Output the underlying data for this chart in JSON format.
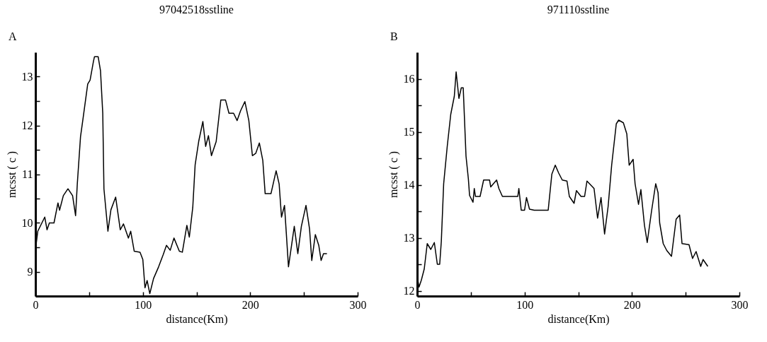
{
  "chart_data": [
    {
      "type": "line",
      "title": "97042518sstline",
      "xlabel": "distance(Km)",
      "ylabel": "mcsst ( c )",
      "annotations": [
        "A"
      ],
      "xlim": [
        0,
        300
      ],
      "xticks": [
        0,
        {
          "value": 50,
          "label": null
        },
        100,
        {
          "value": 150,
          "label": null
        },
        200,
        {
          "value": 250,
          "label": null
        },
        300
      ],
      "ylim": [
        8.5,
        13.5
      ],
      "yticks": [
        9,
        {
          "value": 9.5,
          "label": null
        },
        10,
        {
          "value": 10.5,
          "label": null
        },
        11,
        {
          "value": 11.5,
          "label": null
        },
        12,
        {
          "value": 12.5,
          "label": null
        },
        13
      ],
      "grid": false,
      "series": [
        {
          "color": "#000000",
          "x": [
            0,
            2.2,
            8.7,
            10.8,
            13,
            17.3,
            21,
            22.5,
            26,
            30.3,
            34.6,
            37.4,
            39,
            42,
            44.4,
            48.7,
            50.9,
            54,
            55,
            58.4,
            60.6,
            62.7,
            63.8,
            67.5,
            70.3,
            74.7,
            79,
            82,
            86.6,
            88.7,
            92,
            97.4,
            100,
            102,
            104,
            106.5,
            110,
            114.7,
            119,
            122,
            125.5,
            129,
            134,
            136.8,
            141,
            143.3,
            146.5,
            148.7,
            152,
            155.9,
            158.5,
            161.1,
            163.9,
            168.3,
            172.6,
            177,
            180.2,
            184.5,
            187.8,
            191,
            195,
            198.7,
            202,
            205.2,
            208.5,
            211.7,
            213.9,
            219.3,
            224.1,
            226.9,
            229.1,
            231.9,
            235.6,
            241,
            244.3,
            247.6,
            251.9,
            255.2,
            257.3,
            260.6,
            263.8,
            266,
            268.2,
            271.4
          ],
          "values": [
            9.44,
            9.83,
            10.12,
            9.86,
            10.0,
            10.0,
            10.41,
            10.26,
            10.56,
            10.7,
            10.56,
            10.15,
            10.8,
            11.77,
            12.15,
            12.85,
            12.93,
            13.31,
            13.41,
            13.41,
            13.12,
            12.25,
            10.7,
            9.83,
            10.27,
            10.53,
            9.86,
            9.98,
            9.69,
            9.83,
            9.42,
            9.4,
            9.25,
            8.67,
            8.82,
            8.55,
            8.86,
            9.1,
            9.35,
            9.54,
            9.44,
            9.69,
            9.42,
            9.4,
            9.95,
            9.71,
            10.32,
            11.19,
            11.67,
            12.08,
            11.57,
            11.79,
            11.38,
            11.67,
            12.52,
            12.52,
            12.25,
            12.25,
            12.1,
            12.3,
            12.49,
            12.1,
            11.38,
            11.43,
            11.64,
            11.28,
            10.6,
            10.6,
            11.07,
            10.8,
            10.12,
            10.36,
            9.1,
            9.93,
            9.37,
            9.93,
            10.36,
            9.88,
            9.23,
            9.76,
            9.54,
            9.23,
            9.37,
            9.37
          ]
        }
      ]
    },
    {
      "type": "line",
      "title": "971110sstline",
      "xlabel": "distance(Km)",
      "ylabel": "mcsst ( c )",
      "annotations": [
        "B"
      ],
      "xlim": [
        0,
        300
      ],
      "xticks": [
        0,
        {
          "value": 50,
          "label": null
        },
        100,
        {
          "value": 150,
          "label": null
        },
        200,
        {
          "value": 250,
          "label": null
        },
        300
      ],
      "ylim": [
        11.9,
        16.5
      ],
      "yticks": [
        12,
        {
          "value": 12.5,
          "label": null
        },
        13,
        {
          "value": 13.5,
          "label": null
        },
        14,
        {
          "value": 14.5,
          "label": null
        },
        15,
        {
          "value": 15.5,
          "label": null
        },
        16
      ],
      "grid": false,
      "series": [
        {
          "color": "#000000",
          "x": [
            0,
            1.75,
            3.9,
            6.6,
            9.4,
            12.7,
            16,
            18.8,
            21,
            22.5,
            24.7,
            28,
            31.3,
            34.6,
            36.3,
            38.9,
            41.1,
            42.9,
            45.5,
            47.7,
            48.8,
            52,
            53.2,
            54.3,
            58.6,
            61.9,
            67.4,
            68.5,
            74,
            76.1,
            79.4,
            93.7,
            94.7,
            96.9,
            100,
            101.8,
            104.6,
            109,
            122,
            125.4,
            128.6,
            131.8,
            135.1,
            139.5,
            141.7,
            146.1,
            148.3,
            152.6,
            155.9,
            158.1,
            164.7,
            168,
            171.2,
            174.5,
            177.8,
            181.1,
            185.4,
            187.6,
            192,
            195.2,
            197.4,
            201.1,
            202.9,
            206.1,
            208.3,
            211.6,
            214.2,
            218.2,
            222.1,
            224.3,
            225.8,
            229.1,
            232.4,
            236.8,
            241.1,
            244.4,
            246.6,
            253.1,
            256.4,
            259.7,
            264,
            266.2,
            270.6
          ],
          "values": [
            12.28,
            12.07,
            12.2,
            12.41,
            12.89,
            12.78,
            12.91,
            12.5,
            12.5,
            12.93,
            14.02,
            14.72,
            15.33,
            15.67,
            16.13,
            15.63,
            15.83,
            15.83,
            14.54,
            14.11,
            13.8,
            13.67,
            13.93,
            13.78,
            13.78,
            14.09,
            14.09,
            13.96,
            14.09,
            13.93,
            13.78,
            13.78,
            13.93,
            13.52,
            13.52,
            13.76,
            13.54,
            13.52,
            13.52,
            14.2,
            14.37,
            14.22,
            14.09,
            14.07,
            13.78,
            13.65,
            13.89,
            13.78,
            13.78,
            14.07,
            13.93,
            13.37,
            13.76,
            13.07,
            13.59,
            14.37,
            15.15,
            15.22,
            15.17,
            14.96,
            14.37,
            14.48,
            14.02,
            13.63,
            13.91,
            13.24,
            12.91,
            13.5,
            14.02,
            13.85,
            13.28,
            12.89,
            12.76,
            12.65,
            13.35,
            13.43,
            12.89,
            12.87,
            12.61,
            12.74,
            12.46,
            12.59,
            12.46
          ]
        }
      ]
    }
  ]
}
